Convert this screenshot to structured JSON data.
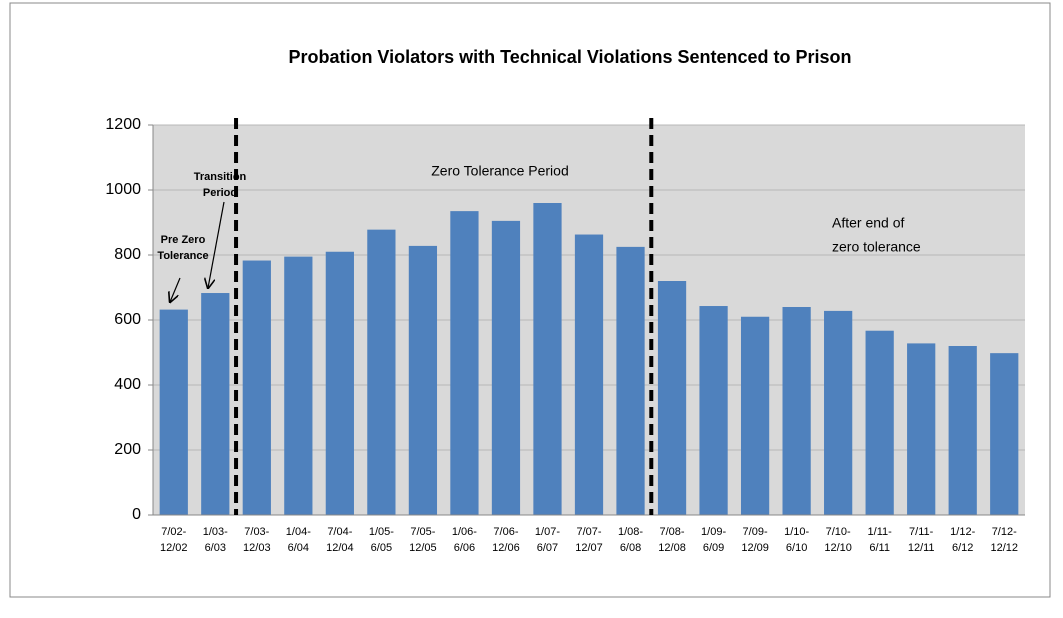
{
  "chart_data": {
    "type": "bar",
    "title": "Probation Violators with Technical Violations Sentenced to Prison",
    "categories": [
      "7/02-12/02",
      "1/03-6/03",
      "7/03-12/03",
      "1/04-6/04",
      "7/04-12/04",
      "1/05-6/05",
      "7/05-12/05",
      "1/06-6/06",
      "7/06-12/06",
      "1/07-6/07",
      "7/07-12/07",
      "1/08-6/08",
      "7/08-12/08",
      "1/09-6/09",
      "7/09-12/09",
      "1/10-6/10",
      "7/10-12/10",
      "1/11-6/11",
      "7/11-12/11",
      "1/12-6/12",
      "7/12-12/12"
    ],
    "values": [
      632,
      683,
      783,
      795,
      810,
      878,
      828,
      935,
      905,
      960,
      863,
      825,
      720,
      643,
      610,
      640,
      628,
      567,
      528,
      520,
      498
    ],
    "color": "#4f81bd",
    "ylim": [
      0,
      1200
    ],
    "yticks": [
      0,
      200,
      400,
      600,
      800,
      1000,
      1200
    ],
    "grid": true,
    "annotations": [
      {
        "lines": [
          "Pre Zero",
          "Tolerance"
        ]
      },
      {
        "lines": [
          "Transition",
          "Period"
        ]
      },
      {
        "lines": [
          "Zero Tolerance Period"
        ]
      },
      {
        "lines": [
          "After end of",
          "zero tolerance"
        ]
      }
    ]
  }
}
